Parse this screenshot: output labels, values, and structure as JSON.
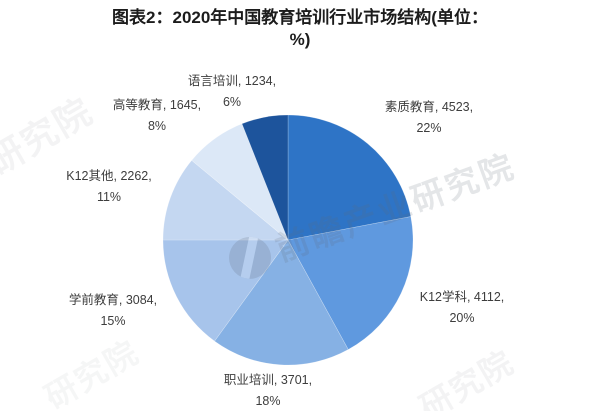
{
  "title": {
    "text": "图表2：2020年中国教育培训行业市场结构(单位：%)"
  },
  "chart_data": {
    "type": "pie",
    "title": "图表2：2020年中国教育培训行业市场结构(单位：%)",
    "unit": "%",
    "start_angle_deg": 0,
    "direction": "clockwise",
    "legend_position": "none",
    "data_label_format": "category, value, percent",
    "segments": [
      {
        "label": "素质教育",
        "value": 4523,
        "pct": 22,
        "color": "#2e74c6"
      },
      {
        "label": "K12学科",
        "value": 4112,
        "pct": 20,
        "color": "#5f99df"
      },
      {
        "label": "职业培训",
        "value": 3701,
        "pct": 18,
        "color": "#86b1e4"
      },
      {
        "label": "学前教育",
        "value": 3084,
        "pct": 15,
        "color": "#a7c4eb"
      },
      {
        "label": "K12其他",
        "value": 2262,
        "pct": 11,
        "color": "#c4d7f1"
      },
      {
        "label": "高等教育",
        "value": 1645,
        "pct": 8,
        "color": "#dce8f7"
      },
      {
        "label": "语言培训",
        "value": 1234,
        "pct": 6,
        "color": "#1d549c"
      }
    ]
  },
  "watermarks": {
    "brand_text": "前瞻产业研究院",
    "corner_text": "研究院"
  }
}
